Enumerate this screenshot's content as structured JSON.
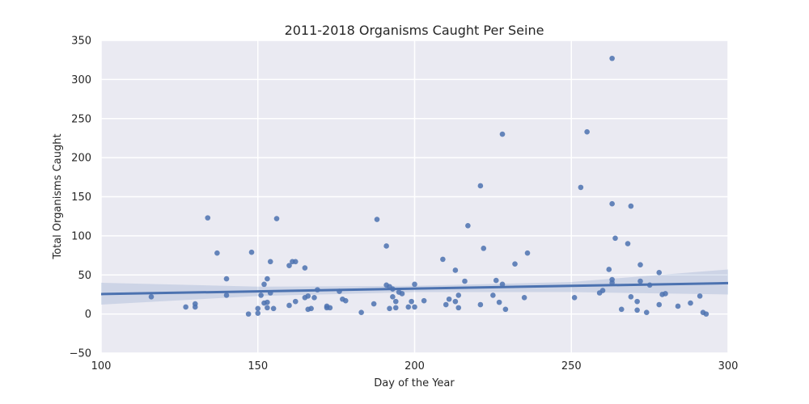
{
  "chart_data": {
    "type": "scatter",
    "title": "2011-2018 Organisms Caught Per Seine",
    "xlabel": "Day of the Year",
    "ylabel": "Total Organisms Caught",
    "xlim": [
      100,
      300
    ],
    "ylim": [
      -50,
      350
    ],
    "xticks": [
      100,
      150,
      200,
      250,
      300
    ],
    "yticks": [
      -50,
      0,
      50,
      100,
      150,
      200,
      250,
      300,
      350
    ],
    "grid": true,
    "colors": {
      "background": "#eaeaf2",
      "grid": "#ffffff",
      "points": "#4c72b0",
      "line": "#4c72b0",
      "band": "#4c72b0"
    },
    "regression": {
      "x": [
        100,
        300
      ],
      "y": [
        25.5,
        39.5
      ]
    },
    "confidence_band": {
      "x": [
        100,
        150,
        200,
        250,
        300
      ],
      "lower": [
        12,
        23,
        28,
        28,
        25
      ],
      "upper": [
        40,
        35,
        36,
        41,
        57
      ]
    },
    "points": [
      [
        116,
        22
      ],
      [
        127,
        9
      ],
      [
        130,
        13
      ],
      [
        130,
        9
      ],
      [
        134,
        123
      ],
      [
        137,
        78
      ],
      [
        140,
        45
      ],
      [
        140,
        24
      ],
      [
        147,
        0
      ],
      [
        148,
        79
      ],
      [
        150,
        7
      ],
      [
        150,
        1
      ],
      [
        151,
        24
      ],
      [
        152,
        38
      ],
      [
        152,
        14
      ],
      [
        153,
        45
      ],
      [
        153,
        15
      ],
      [
        153,
        8
      ],
      [
        154,
        67
      ],
      [
        154,
        27
      ],
      [
        155,
        7
      ],
      [
        156,
        122
      ],
      [
        160,
        62
      ],
      [
        160,
        11
      ],
      [
        161,
        67
      ],
      [
        162,
        67
      ],
      [
        162,
        16
      ],
      [
        165,
        59
      ],
      [
        165,
        21
      ],
      [
        166,
        23
      ],
      [
        166,
        6
      ],
      [
        167,
        7
      ],
      [
        168,
        21
      ],
      [
        169,
        31
      ],
      [
        172,
        10
      ],
      [
        172,
        8
      ],
      [
        173,
        8
      ],
      [
        176,
        29
      ],
      [
        177,
        19
      ],
      [
        178,
        17
      ],
      [
        183,
        2
      ],
      [
        187,
        13
      ],
      [
        188,
        121
      ],
      [
        191,
        87
      ],
      [
        191,
        37
      ],
      [
        192,
        35
      ],
      [
        192,
        7
      ],
      [
        193,
        32
      ],
      [
        193,
        22
      ],
      [
        194,
        16
      ],
      [
        194,
        8
      ],
      [
        195,
        28
      ],
      [
        196,
        26
      ],
      [
        198,
        9
      ],
      [
        199,
        16
      ],
      [
        200,
        38
      ],
      [
        200,
        9
      ],
      [
        203,
        17
      ],
      [
        209,
        70
      ],
      [
        210,
        12
      ],
      [
        211,
        19
      ],
      [
        213,
        56
      ],
      [
        213,
        16
      ],
      [
        214,
        24
      ],
      [
        214,
        8
      ],
      [
        216,
        42
      ],
      [
        217,
        113
      ],
      [
        221,
        164
      ],
      [
        221,
        12
      ],
      [
        222,
        84
      ],
      [
        225,
        24
      ],
      [
        226,
        43
      ],
      [
        227,
        15
      ],
      [
        228,
        230
      ],
      [
        228,
        38
      ],
      [
        229,
        6
      ],
      [
        232,
        64
      ],
      [
        235,
        21
      ],
      [
        236,
        78
      ],
      [
        251,
        21
      ],
      [
        253,
        162
      ],
      [
        255,
        233
      ],
      [
        259,
        27
      ],
      [
        260,
        30
      ],
      [
        262,
        57
      ],
      [
        263,
        327
      ],
      [
        263,
        141
      ],
      [
        263,
        44
      ],
      [
        263,
        40
      ],
      [
        264,
        97
      ],
      [
        266,
        6
      ],
      [
        268,
        90
      ],
      [
        269,
        138
      ],
      [
        269,
        22
      ],
      [
        271,
        16
      ],
      [
        271,
        5
      ],
      [
        272,
        63
      ],
      [
        272,
        42
      ],
      [
        274,
        2
      ],
      [
        275,
        37
      ],
      [
        278,
        53
      ],
      [
        278,
        12
      ],
      [
        279,
        25
      ],
      [
        280,
        26
      ],
      [
        284,
        10
      ],
      [
        288,
        14
      ],
      [
        291,
        23
      ],
      [
        292,
        2
      ],
      [
        293,
        0
      ]
    ]
  }
}
